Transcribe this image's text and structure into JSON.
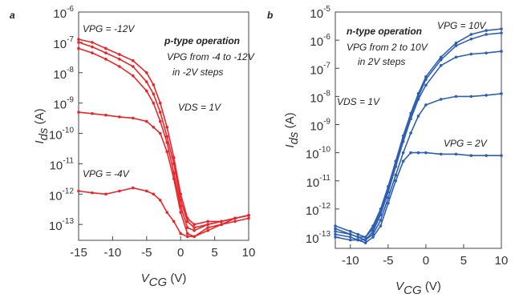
{
  "chart_data": [
    {
      "type": "line",
      "log_y": true,
      "color": "#e8262a",
      "xlabel": {
        "symbol": "V",
        "subscript": "CG",
        "unit": "(V)"
      },
      "ylabel": {
        "symbol": "I",
        "subscript": "ds",
        "unit": "(A)"
      },
      "annotations": [
        "a",
        "VPG = -12V",
        "p-type operation",
        "VPG from -4 to -12V",
        "in -2V steps",
        "VDS = 1V",
        "VPG = -4V"
      ],
      "xlim": [
        -15,
        10
      ],
      "xticks": [
        -15,
        -10,
        -5,
        0,
        5,
        10
      ],
      "ylim": [
        3e-14,
        1e-06
      ],
      "yticks": [
        {
          "value": 1e-06,
          "label": "10-6"
        },
        {
          "value": 1e-07,
          "label": "10-7"
        },
        {
          "value": 1e-08,
          "label": "10-8"
        },
        {
          "value": 1e-09,
          "label": "10-9"
        },
        {
          "value": 1e-10,
          "label": "10-10"
        },
        {
          "value": 1e-11,
          "label": "10-11"
        },
        {
          "value": 1e-12,
          "label": "10-12"
        },
        {
          "value": 1e-13,
          "label": "10-13"
        }
      ],
      "x": [
        -15,
        -13,
        -11,
        -9,
        -7,
        -5,
        -4,
        -3,
        -2,
        -1,
        0,
        1,
        2,
        4,
        6,
        8,
        10
      ],
      "series": [
        {
          "color": "#e8262a",
          "values": [
            1.26e-07,
            1e-07,
            6.3e-08,
            4e-08,
            2.5e-08,
            1e-08,
            4e-09,
            1e-09,
            1.6e-10,
            1.6e-11,
            1e-12,
            1.6e-13,
            1e-13,
            1.26e-13,
            1.26e-13,
            1.6e-13,
            2e-13
          ]
        },
        {
          "color": "#e8262a",
          "values": [
            1e-07,
            7.1e-08,
            4.5e-08,
            2.8e-08,
            1.6e-08,
            5e-09,
            2e-09,
            5e-10,
            7.9e-11,
            1e-11,
            6.3e-13,
            1.26e-13,
            7.9e-14,
            1e-13,
            1.26e-13,
            1.6e-13,
            2e-13
          ]
        },
        {
          "color": "#e8262a",
          "values": [
            6.3e-08,
            4.5e-08,
            2.8e-08,
            1.6e-08,
            7.9e-09,
            2.5e-09,
            1e-09,
            2.5e-10,
            5e-11,
            5e-12,
            4e-13,
            7.9e-14,
            6.3e-14,
            1e-13,
            1.26e-13,
            1.6e-13,
            2e-13
          ]
        },
        {
          "color": "#e8262a",
          "values": [
            5e-10,
            4.5e-10,
            4e-10,
            3.5e-10,
            3.2e-10,
            2.5e-10,
            1.6e-10,
            1e-10,
            2.5e-11,
            3.2e-12,
            2.5e-13,
            5e-14,
            4e-14,
            7.9e-14,
            1e-13,
            1.6e-13,
            2e-13
          ]
        },
        {
          "color": "#e8262a",
          "values": [
            1.26e-12,
            1.1e-12,
            1e-12,
            1.26e-12,
            1.6e-12,
            1.26e-12,
            1e-12,
            6.3e-13,
            2.5e-13,
            1.26e-13,
            5e-14,
            4e-14,
            4e-14,
            6.3e-14,
            1e-13,
            1.26e-13,
            1.6e-13
          ]
        }
      ]
    },
    {
      "type": "line",
      "log_y": true,
      "color": "#2f5fb3",
      "xlabel": {
        "symbol": "V",
        "subscript": "CG",
        "unit": "(V)"
      },
      "ylabel": {
        "symbol": "I",
        "subscript": "ds",
        "unit": "(A)"
      },
      "annotations": [
        "b",
        "VPG = 10V",
        "n-type operation",
        "VPG from 2 to 10V",
        "in 2V steps",
        "VDS = 1V",
        "VPG = 2V"
      ],
      "xlim": [
        -12,
        10
      ],
      "xticks": [
        -10,
        -5,
        0,
        5,
        10
      ],
      "ylim": [
        4e-14,
        1e-05
      ],
      "yticks": [
        {
          "value": 1e-05,
          "label": "10-5"
        },
        {
          "value": 1e-06,
          "label": "10-6"
        },
        {
          "value": 1e-07,
          "label": "10-7"
        },
        {
          "value": 1e-08,
          "label": "10-8"
        },
        {
          "value": 1e-09,
          "label": "10-9"
        },
        {
          "value": 1e-10,
          "label": "10-10"
        },
        {
          "value": 1e-11,
          "label": "10-11"
        },
        {
          "value": 1e-12,
          "label": "10-12"
        },
        {
          "value": 1e-13,
          "label": "10-13"
        }
      ],
      "x": [
        -12,
        -10,
        -9,
        -8,
        -7,
        -6,
        -5,
        -4,
        -3,
        -2,
        -1,
        0,
        2,
        4,
        6,
        8,
        10
      ],
      "series": [
        {
          "color": "#2f5fb3",
          "values": [
            2.5e-13,
            1.6e-13,
            1.26e-13,
            1e-13,
            2.5e-13,
            1e-12,
            6.3e-12,
            5e-11,
            4e-10,
            2.5e-09,
            1.26e-08,
            5e-08,
            2.5e-07,
            7.9e-07,
            1.6e-06,
            2.2e-06,
            2.5e-06
          ]
        },
        {
          "color": "#2f5fb3",
          "values": [
            2e-13,
            1.26e-13,
            1e-13,
            1e-13,
            2e-13,
            7.9e-13,
            5e-12,
            4e-11,
            3.2e-10,
            2e-09,
            1e-08,
            4e-08,
            2e-07,
            6.3e-07,
            1.1e-06,
            1.6e-06,
            1.8e-06
          ]
        },
        {
          "color": "#2f5fb3",
          "values": [
            1.6e-13,
            1.26e-13,
            1e-13,
            7.9e-14,
            1.6e-13,
            6.3e-13,
            4e-12,
            3.2e-11,
            2.5e-10,
            1.6e-09,
            7.9e-09,
            2.5e-08,
            1.26e-07,
            2.5e-07,
            3.2e-07,
            3.5e-07,
            4e-07
          ]
        },
        {
          "color": "#2f5fb3",
          "values": [
            1.26e-13,
            1e-13,
            7.9e-14,
            7.9e-14,
            1.26e-13,
            4e-13,
            2.5e-12,
            1.6e-11,
            1e-10,
            5e-10,
            2e-09,
            5e-09,
            7.9e-09,
            1e-08,
            1e-08,
            1.1e-08,
            1.26e-08
          ]
        },
        {
          "color": "#2f5fb3",
          "values": [
            1e-13,
            7.9e-14,
            7.9e-14,
            6.3e-14,
            1e-13,
            2.5e-13,
            1.6e-12,
            1e-11,
            5e-11,
            1e-10,
            1e-10,
            1e-10,
            8.9e-11,
            8.9e-11,
            7.9e-11,
            7.9e-11,
            7.9e-11
          ]
        }
      ]
    }
  ]
}
